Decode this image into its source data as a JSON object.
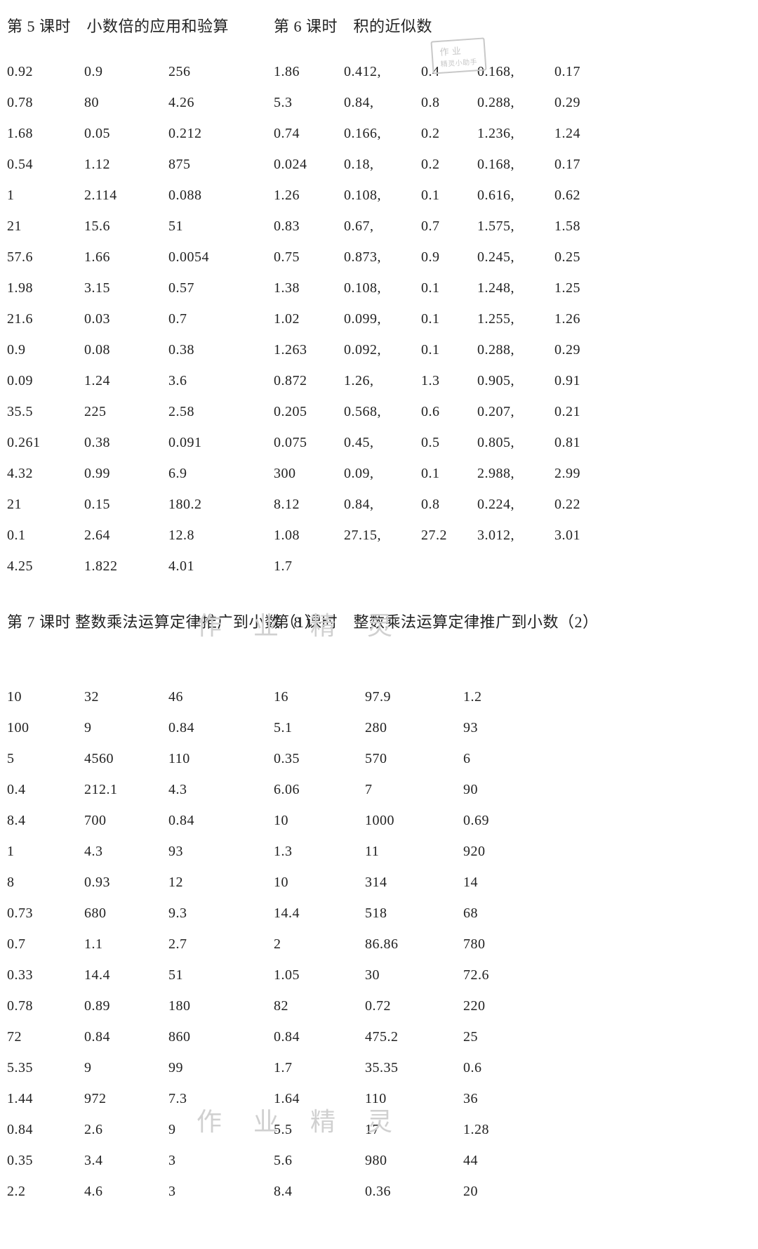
{
  "lesson5": {
    "title": "第 5 课时　小数倍的应用和验算",
    "cols": 3,
    "rows": [
      [
        "0.92",
        "0.9",
        "256"
      ],
      [
        "0.78",
        "80",
        "4.26"
      ],
      [
        "1.68",
        "0.05",
        "0.212"
      ],
      [
        "0.54",
        "1.12",
        "875"
      ],
      [
        "1",
        "2.114",
        "0.088"
      ],
      [
        "21",
        "15.6",
        "51"
      ],
      [
        "57.6",
        "1.66",
        "0.0054"
      ],
      [
        "1.98",
        "3.15",
        "0.57"
      ],
      [
        "21.6",
        "0.03",
        "0.7"
      ],
      [
        "0.9",
        "0.08",
        "0.38"
      ],
      [
        "0.09",
        "1.24",
        "3.6"
      ],
      [
        "35.5",
        "225",
        "2.58"
      ],
      [
        "0.261",
        "0.38",
        "0.091"
      ],
      [
        "4.32",
        "0.99",
        "6.9"
      ],
      [
        "21",
        "0.15",
        "180.2"
      ],
      [
        "0.1",
        "2.64",
        "12.8"
      ],
      [
        "4.25",
        "1.822",
        "4.01"
      ]
    ]
  },
  "lesson6": {
    "title": "第 6 课时　积的近似数",
    "cols": 5,
    "rows": [
      [
        "1.86",
        "0.412,",
        "0.4",
        "0.168,",
        "0.17"
      ],
      [
        "5.3",
        "0.84,",
        "0.8",
        "0.288,",
        "0.29"
      ],
      [
        "0.74",
        "0.166,",
        "0.2",
        "1.236,",
        "1.24"
      ],
      [
        "0.024",
        "0.18,",
        "0.2",
        "0.168,",
        "0.17"
      ],
      [
        "1.26",
        "0.108,",
        "0.1",
        "0.616,",
        "0.62"
      ],
      [
        "0.83",
        "0.67,",
        "0.7",
        "1.575,",
        "1.58"
      ],
      [
        "0.75",
        "0.873,",
        "0.9",
        "0.245,",
        "0.25"
      ],
      [
        "1.38",
        "0.108,",
        "0.1",
        "1.248,",
        "1.25"
      ],
      [
        "1.02",
        "0.099,",
        "0.1",
        "1.255,",
        "1.26"
      ],
      [
        "1.263",
        "0.092,",
        "0.1",
        "0.288,",
        "0.29"
      ],
      [
        "0.872",
        "1.26,",
        "1.3",
        "0.905,",
        "0.91"
      ],
      [
        "0.205",
        "0.568,",
        "0.6",
        "0.207,",
        "0.21"
      ],
      [
        "0.075",
        "0.45,",
        "0.5",
        "0.805,",
        "0.81"
      ],
      [
        "300",
        "0.09,",
        "0.1",
        "2.988,",
        "2.99"
      ],
      [
        "8.12",
        "0.84,",
        "0.8",
        "0.224,",
        "0.22"
      ],
      [
        "1.08",
        "27.15,",
        "27.2",
        "3.012,",
        "3.01"
      ],
      [
        "1.7",
        "",
        "",
        "",
        ""
      ]
    ]
  },
  "lesson7": {
    "title": "第 7 课时  整数乘法运算定律推广到小数（1）",
    "cols": 3,
    "rows": [
      [
        "10",
        "32",
        "46"
      ],
      [
        "100",
        "9",
        "0.84"
      ],
      [
        "5",
        "4560",
        "110"
      ],
      [
        "0.4",
        "212.1",
        "4.3"
      ],
      [
        "8.4",
        "700",
        "0.84"
      ],
      [
        "1",
        "4.3",
        "93"
      ],
      [
        "8",
        "0.93",
        "12"
      ],
      [
        "0.73",
        "680",
        "9.3"
      ],
      [
        "0.7",
        "1.1",
        "2.7"
      ],
      [
        "0.33",
        "14.4",
        "51"
      ],
      [
        "0.78",
        "0.89",
        "180"
      ],
      [
        "72",
        "0.84",
        "860"
      ],
      [
        "5.35",
        "9",
        "99"
      ],
      [
        "1.44",
        "972",
        "7.3"
      ],
      [
        "0.84",
        "2.6",
        "9"
      ],
      [
        "0.35",
        "3.4",
        "3"
      ],
      [
        "2.2",
        "4.6",
        "3"
      ]
    ]
  },
  "lesson8": {
    "title": "第 8 课时　整数乘法运算定律推广到小数（2）",
    "cols": 3,
    "rows": [
      [
        "16",
        "97.9",
        "1.2"
      ],
      [
        "5.1",
        "280",
        "93"
      ],
      [
        "0.35",
        "570",
        "6"
      ],
      [
        "6.06",
        "7",
        "90"
      ],
      [
        "10",
        "1000",
        "0.69"
      ],
      [
        "1.3",
        "11",
        "920"
      ],
      [
        "10",
        "314",
        "14"
      ],
      [
        "14.4",
        "518",
        "68"
      ],
      [
        "2",
        "86.86",
        "780"
      ],
      [
        "1.05",
        "30",
        "72.6"
      ],
      [
        "82",
        "0.72",
        "220"
      ],
      [
        "0.84",
        "475.2",
        "25"
      ],
      [
        "1.7",
        "35.35",
        "0.6"
      ],
      [
        "1.64",
        "110",
        "36"
      ],
      [
        "5.5",
        "17",
        "1.28"
      ],
      [
        "5.6",
        "980",
        "44"
      ],
      [
        "8.4",
        "0.36",
        "20"
      ]
    ]
  },
  "watermarks": {
    "text": "作 业 精 灵",
    "stamp_line1": "作 业",
    "stamp_line2": "精灵小助手"
  },
  "style": {
    "font_size_body": 20,
    "font_size_title": 22,
    "text_color": "#222222",
    "background_color": "#ffffff",
    "watermark_color": "#d0d0d0",
    "line_height": 2.2
  }
}
